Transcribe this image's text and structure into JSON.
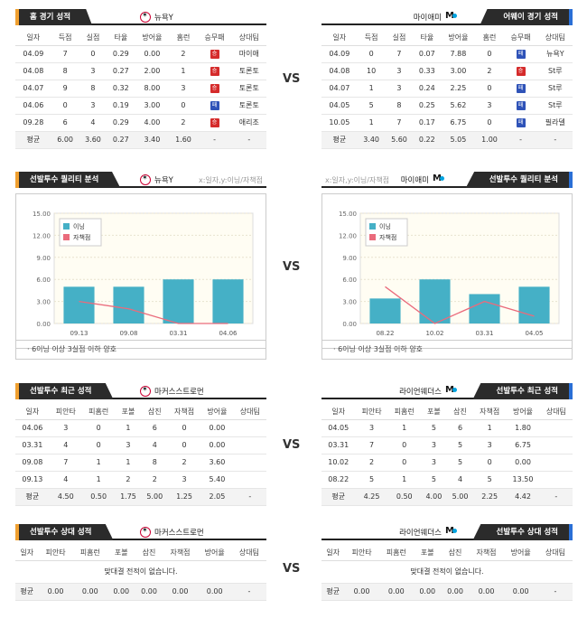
{
  "colors": {
    "loss": "#d52b2b",
    "win": "#2f53b8",
    "bar": "#45b0c6",
    "line": "#ea6b7c",
    "tab": "#2b2b2b",
    "accent_left": "#f0a030",
    "accent_right": "#2a6fd6"
  },
  "vs": "VS",
  "home": {
    "tab": "홈 경기 성적",
    "team": "뉴욕Y",
    "columns": [
      "일자",
      "득점",
      "실점",
      "타율",
      "방어율",
      "홈런",
      "승무패",
      "상대팀"
    ],
    "rows": [
      [
        "04.09",
        "7",
        "0",
        "0.29",
        "0.00",
        "2",
        "승",
        "마이애"
      ],
      [
        "04.08",
        "8",
        "3",
        "0.27",
        "2.00",
        "1",
        "승",
        "토론토"
      ],
      [
        "04.07",
        "9",
        "8",
        "0.32",
        "8.00",
        "3",
        "승",
        "토론토"
      ],
      [
        "04.06",
        "0",
        "3",
        "0.19",
        "3.00",
        "0",
        "패",
        "토론토"
      ],
      [
        "09.28",
        "6",
        "4",
        "0.29",
        "4.00",
        "2",
        "승",
        "애리조"
      ]
    ],
    "avg": [
      "평균",
      "6.00",
      "3.60",
      "0.27",
      "3.40",
      "1.60",
      "-",
      "-"
    ]
  },
  "away": {
    "tab": "어웨이 경기 성적",
    "team": "마이애미",
    "columns": [
      "일자",
      "득점",
      "실점",
      "타율",
      "방어율",
      "홈런",
      "승무패",
      "상대팀"
    ],
    "rows": [
      [
        "04.09",
        "0",
        "7",
        "0.07",
        "7.88",
        "0",
        "패",
        "뉴욕Y"
      ],
      [
        "04.08",
        "10",
        "3",
        "0.33",
        "3.00",
        "2",
        "승",
        "St루"
      ],
      [
        "04.07",
        "1",
        "3",
        "0.24",
        "2.25",
        "0",
        "패",
        "St루"
      ],
      [
        "04.05",
        "5",
        "8",
        "0.25",
        "5.62",
        "3",
        "패",
        "St루"
      ],
      [
        "10.05",
        "1",
        "7",
        "0.17",
        "6.75",
        "0",
        "패",
        "필라델"
      ]
    ],
    "avg": [
      "평균",
      "3.40",
      "5.60",
      "0.22",
      "5.05",
      "1.00",
      "-",
      "-"
    ]
  },
  "quality": {
    "tab": "선발투수 퀄리티 분석",
    "hint_left": "x:일자,y:이닝/자책점",
    "hint_right": "x:일자,y:이닝/자책점",
    "note": "6이닝 이상 3실점 이하 양호"
  },
  "chart_data": [
    {
      "type": "bar",
      "team": "뉴욕Y",
      "categories": [
        "09.13",
        "09.08",
        "03.31",
        "04.06"
      ],
      "series": [
        {
          "name": "이닝",
          "values": [
            5.0,
            5.0,
            6.0,
            6.0
          ]
        },
        {
          "name": "자책점",
          "values": [
            3,
            2,
            0,
            0
          ]
        }
      ],
      "ylim": [
        0,
        15
      ],
      "yticks": [
        "15.00",
        "12.00",
        "9.00",
        "6.00",
        "3.00",
        "0.00"
      ],
      "legend": "top-left"
    },
    {
      "type": "bar",
      "team": "마이애미",
      "categories": [
        "08.22",
        "10.02",
        "03.31",
        "04.05"
      ],
      "series": [
        {
          "name": "이닝",
          "values": [
            3.4,
            6.0,
            4.0,
            5.0
          ]
        },
        {
          "name": "자책점",
          "values": [
            5,
            0,
            3,
            1
          ]
        }
      ],
      "ylim": [
        0,
        15
      ],
      "yticks": [
        "15.00",
        "12.00",
        "9.00",
        "6.00",
        "3.00",
        "0.00"
      ],
      "legend": "top-left"
    }
  ],
  "recent": {
    "tab": "선발투수 최근 성적",
    "left_pitcher": "마커스스트로먼",
    "right_pitcher": "라이언웨더스",
    "columns": [
      "일자",
      "피안타",
      "피홈런",
      "포볼",
      "삼진",
      "자책점",
      "방어율",
      "상대팀"
    ],
    "left_rows": [
      [
        "04.06",
        "3",
        "0",
        "1",
        "6",
        "0",
        "0.00",
        ""
      ],
      [
        "03.31",
        "4",
        "0",
        "3",
        "4",
        "0",
        "0.00",
        ""
      ],
      [
        "09.08",
        "7",
        "1",
        "1",
        "8",
        "2",
        "3.60",
        ""
      ],
      [
        "09.13",
        "4",
        "1",
        "2",
        "2",
        "3",
        "5.40",
        ""
      ]
    ],
    "left_avg": [
      "평균",
      "4.50",
      "0.50",
      "1.75",
      "5.00",
      "1.25",
      "2.05",
      "-"
    ],
    "right_rows": [
      [
        "04.05",
        "3",
        "1",
        "5",
        "6",
        "1",
        "1.80",
        ""
      ],
      [
        "03.31",
        "7",
        "0",
        "3",
        "5",
        "3",
        "6.75",
        ""
      ],
      [
        "10.02",
        "2",
        "0",
        "3",
        "5",
        "0",
        "0.00",
        ""
      ],
      [
        "08.22",
        "5",
        "1",
        "5",
        "4",
        "5",
        "13.50",
        ""
      ]
    ],
    "right_avg": [
      "평균",
      "4.25",
      "0.50",
      "4.00",
      "5.00",
      "2.25",
      "4.42",
      "-"
    ]
  },
  "versus": {
    "tab": "선발투수 상대 성적",
    "left_pitcher": "마커스스트로먼",
    "right_pitcher": "라이언웨더스",
    "columns": [
      "일자",
      "피안타",
      "피홈런",
      "포볼",
      "삼진",
      "자책점",
      "방어율",
      "상대팀"
    ],
    "empty": "맞대결 전적이 없습니다.",
    "avg": [
      "평균",
      "0.00",
      "0.00",
      "0.00",
      "0.00",
      "0.00",
      "0.00",
      "-"
    ]
  }
}
